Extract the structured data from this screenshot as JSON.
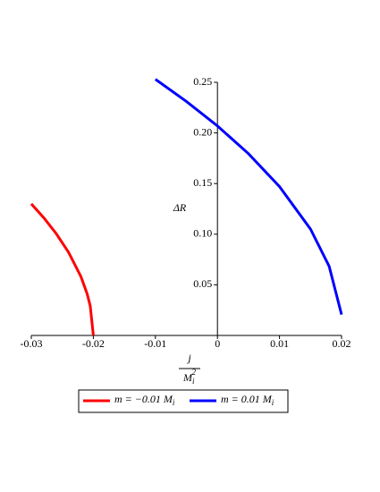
{
  "chart_data": {
    "type": "line",
    "y_label": "ΔR",
    "x_label": {
      "numerator": "j",
      "denominator": "Mi2"
    },
    "xlim": [
      -0.03,
      0.02
    ],
    "ylim": [
      0,
      0.25
    ],
    "xticks": [
      -0.03,
      -0.02,
      -0.01,
      0,
      0.01,
      0.02
    ],
    "yticks": [
      0.05,
      {
        "value": 0.1,
        "label": "0.10"
      },
      0.15,
      {
        "value": 0.2,
        "label": "0.20"
      },
      0.25
    ],
    "series": [
      {
        "name": "m = −0.01 Mi",
        "color": "#ff0000",
        "x": [
          -0.03,
          -0.028,
          -0.026,
          -0.024,
          -0.022,
          -0.021,
          -0.0205,
          -0.02
        ],
        "values": [
          0.13,
          0.1163,
          0.1007,
          0.0822,
          0.0581,
          0.0411,
          0.0291,
          0.0
        ]
      },
      {
        "name": "m = 0.01 Mi",
        "color": "#0000ff",
        "x": [
          -0.01,
          -0.005,
          0,
          0.005,
          0.01,
          0.015,
          0.018,
          0.02
        ],
        "values": [
          0.253,
          0.2311,
          0.2069,
          0.1795,
          0.147,
          0.105,
          0.0683,
          0.0206
        ]
      }
    ]
  }
}
